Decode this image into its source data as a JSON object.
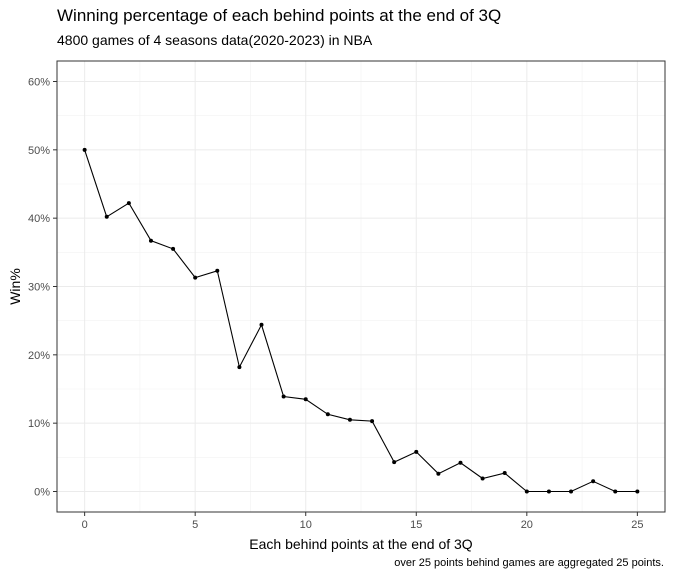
{
  "chart_data": {
    "type": "line",
    "title": "Winning percentage of each behind points at the end of 3Q",
    "subtitle": "4800 games of 4 seasons data(2020-2023) in NBA",
    "caption": "over 25 points behind games are aggregated 25 points.",
    "xlabel": "Each behind points at the end of 3Q",
    "ylabel": "Win%",
    "xlim": [
      -1.25,
      26.25
    ],
    "ylim": [
      -3,
      63
    ],
    "x_ticks": [
      0,
      5,
      10,
      15,
      20,
      25
    ],
    "y_ticks": [
      0,
      10,
      20,
      30,
      40,
      50,
      60
    ],
    "y_tick_labels": [
      "0%",
      "10%",
      "20%",
      "30%",
      "40%",
      "50%",
      "60%"
    ],
    "grid": true,
    "legend": "none",
    "line_color": "#000000",
    "series": [
      {
        "x": [
          0,
          1,
          2,
          3,
          4,
          5,
          6,
          7,
          8,
          9,
          10,
          11,
          12,
          13,
          14,
          15,
          16,
          17,
          18,
          19,
          20,
          21,
          22,
          23,
          24,
          25
        ],
        "values": [
          50.0,
          40.2,
          42.2,
          36.7,
          35.5,
          31.3,
          32.3,
          18.2,
          24.4,
          13.9,
          13.5,
          11.3,
          10.5,
          10.3,
          4.3,
          5.8,
          2.6,
          4.2,
          1.9,
          2.7,
          0.0,
          0.0,
          0.0,
          1.5,
          0.0,
          0.0
        ]
      }
    ]
  }
}
